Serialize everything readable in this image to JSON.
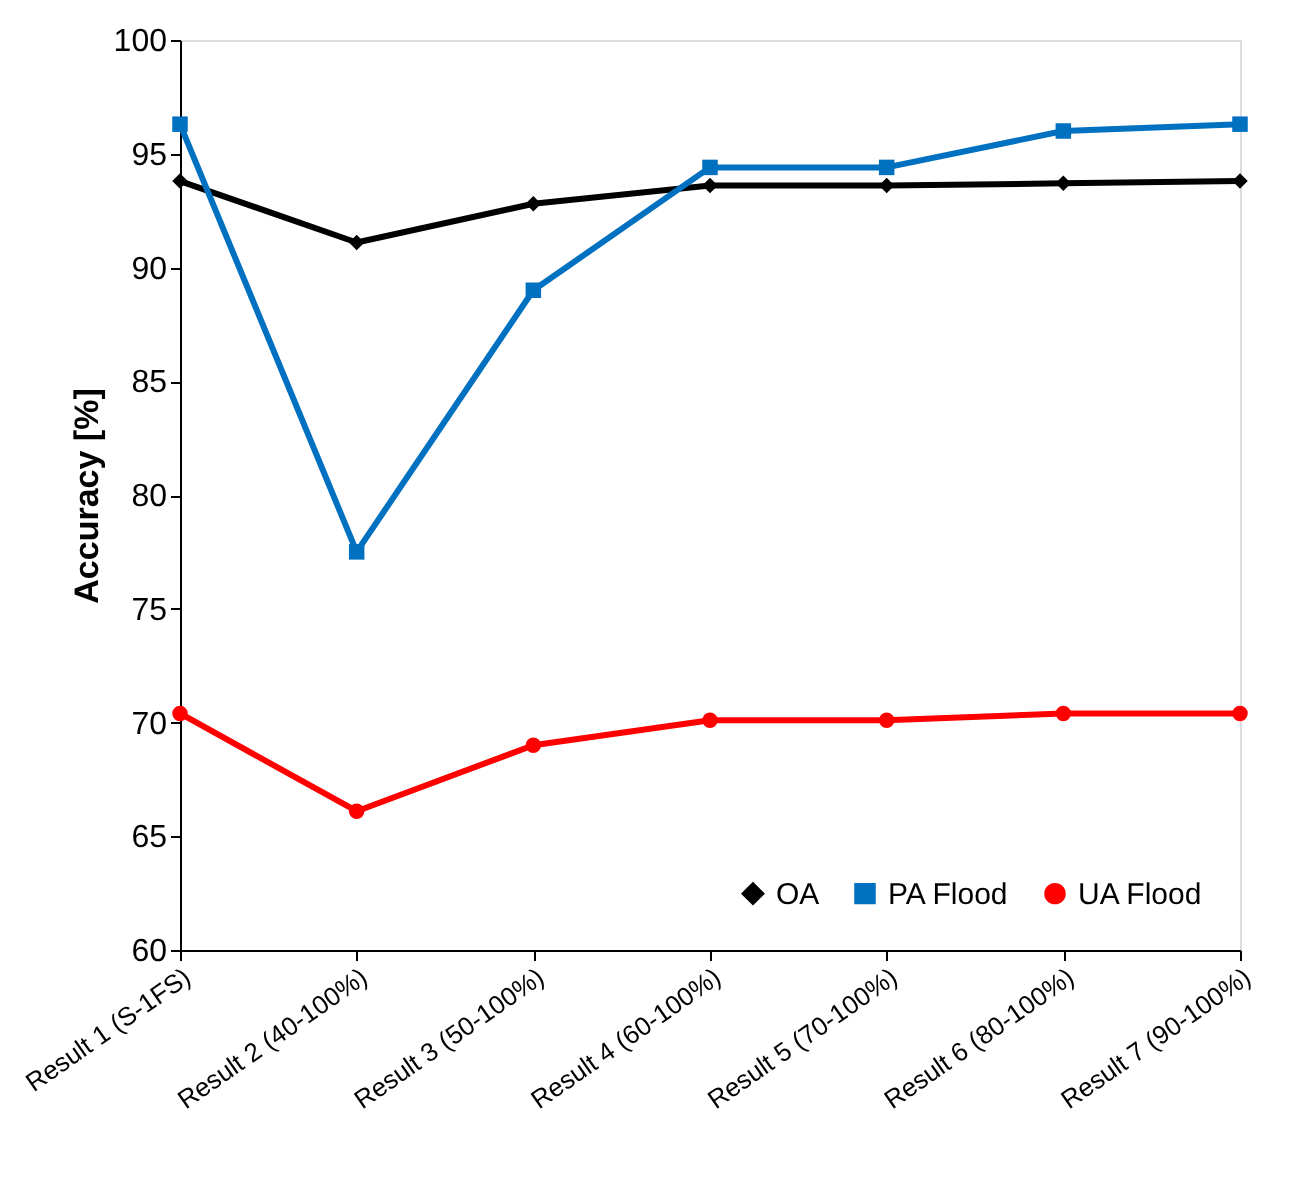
{
  "chart_data": {
    "type": "line",
    "ylabel": "Accuracy [%]",
    "categories": [
      "Result 1 (S-1FS)",
      "Result 2 (40-100%)",
      "Result 3 (50-100%)",
      "Result 4 (60-100%)",
      "Result 5 (70-100%)",
      "Result 6 (80-100%)",
      "Result 7 (90-100%)"
    ],
    "series": [
      {
        "name": "OA",
        "color": "#000000",
        "marker": "diamond",
        "values": [
          93.8,
          91.1,
          92.8,
          93.6,
          93.6,
          93.7,
          93.8
        ]
      },
      {
        "name": "PA Flood",
        "color": "#0070c0",
        "marker": "square",
        "values": [
          96.3,
          77.5,
          89.0,
          94.4,
          94.4,
          96.0,
          96.3
        ]
      },
      {
        "name": "UA Flood",
        "color": "#ff0000",
        "marker": "circle",
        "values": [
          70.4,
          66.1,
          69.0,
          70.1,
          70.1,
          70.4,
          70.4
        ]
      }
    ],
    "ylim": [
      60,
      100
    ],
    "yticks": [
      60,
      65,
      70,
      75,
      80,
      85,
      90,
      95,
      100
    ],
    "grid": false,
    "legend": "bottom right",
    "line_style": "solid"
  }
}
